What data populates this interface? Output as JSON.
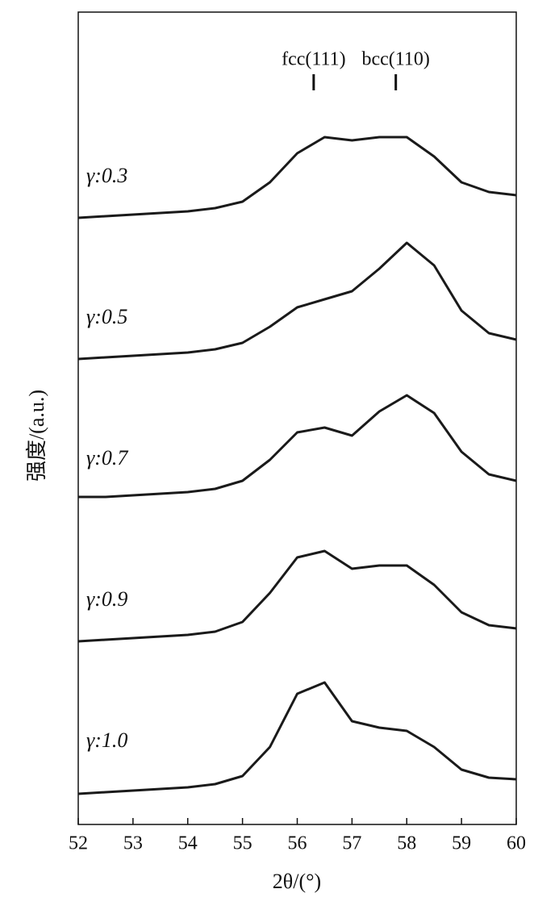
{
  "chart_data": {
    "type": "line",
    "xlabel": "2θ/(°)",
    "ylabel": "强度/(a.u.)",
    "x": [
      52,
      52.5,
      53,
      53.5,
      54,
      54.5,
      55,
      55.5,
      56,
      56.5,
      57,
      57.5,
      58,
      58.5,
      59,
      59.5,
      60
    ],
    "series": [
      {
        "name": "γ:0.3",
        "color": "#1a1a1a",
        "values": [
          10,
          11,
          12,
          13,
          14,
          16,
          20,
          32,
          50,
          60,
          58,
          60,
          60,
          48,
          32,
          26,
          24
        ]
      },
      {
        "name": "γ:0.5",
        "color": "#1a1a1a",
        "values": [
          10,
          11,
          12,
          13,
          14,
          16,
          20,
          30,
          42,
          47,
          52,
          66,
          82,
          68,
          40,
          26,
          22
        ]
      },
      {
        "name": "γ:0.7",
        "color": "#1a1a1a",
        "values": [
          12,
          12,
          13,
          14,
          15,
          17,
          22,
          35,
          52,
          55,
          50,
          65,
          75,
          64,
          40,
          26,
          22
        ]
      },
      {
        "name": "γ:0.9",
        "color": "#1a1a1a",
        "values": [
          10,
          11,
          12,
          13,
          14,
          16,
          22,
          40,
          62,
          66,
          55,
          57,
          57,
          45,
          28,
          20,
          18
        ]
      },
      {
        "name": "γ:1.0",
        "color": "#1a1a1a",
        "values": [
          3,
          4,
          5,
          6,
          7,
          9,
          14,
          32,
          65,
          72,
          48,
          44,
          42,
          32,
          18,
          13,
          12
        ]
      }
    ],
    "annotations": [
      {
        "text": "fcc(111)",
        "x": 56.3
      },
      {
        "text": "bcc(110)",
        "x": 57.8
      }
    ],
    "xlim": [
      52,
      60
    ],
    "xticks": [
      52,
      53,
      54,
      55,
      56,
      57,
      58,
      59,
      60
    ],
    "ylim": [
      0,
      100
    ]
  }
}
